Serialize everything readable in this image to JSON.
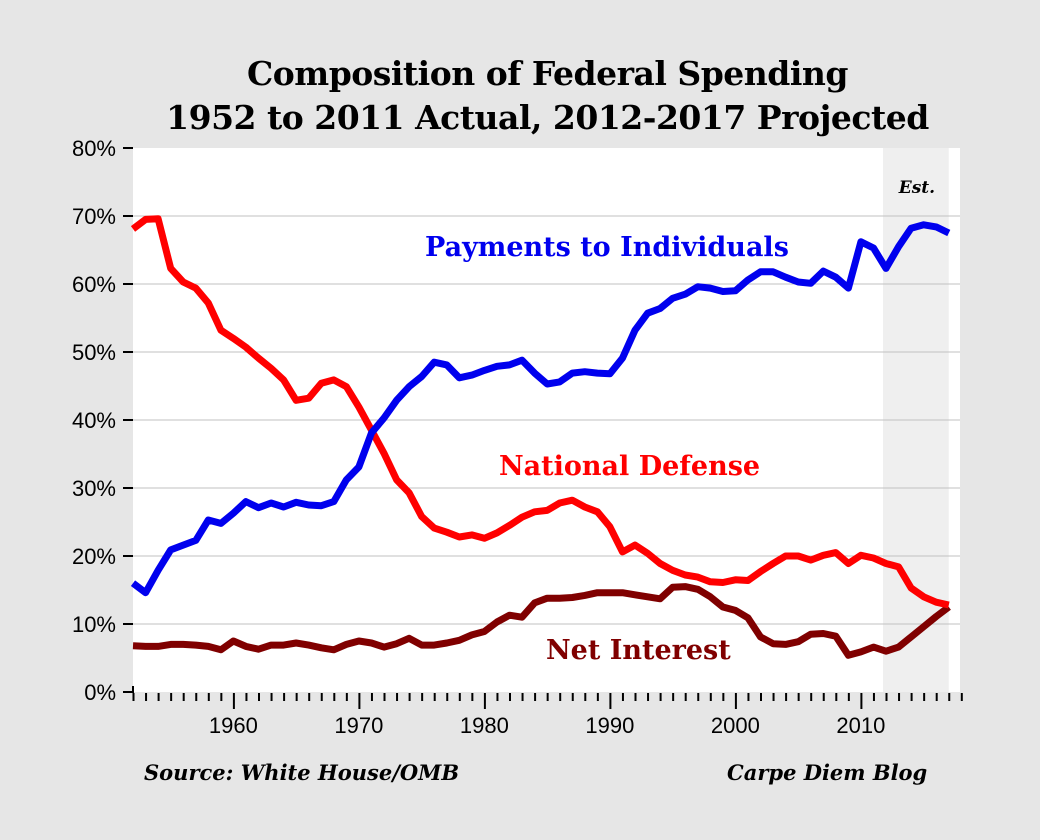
{
  "chart_data": {
    "type": "line",
    "title": "Composition of Federal Spending",
    "subtitle": "1952 to 2011 Actual, 2012-2017 Projected",
    "xlabel": "",
    "ylabel": "",
    "xlim": [
      1952,
      2018
    ],
    "ylim": [
      0,
      80
    ],
    "grid": true,
    "x_ticks": [
      1960,
      1970,
      1980,
      1990,
      2000,
      2010
    ],
    "x_tick_labels": [
      "1960",
      "1970",
      "1980",
      "1990",
      "2000",
      "2010"
    ],
    "y_ticks": [
      0,
      10,
      20,
      30,
      40,
      50,
      60,
      70,
      80
    ],
    "y_tick_labels": [
      "0%",
      "10%",
      "20%",
      "30%",
      "40%",
      "50%",
      "60%",
      "70%",
      "80%"
    ],
    "projection_region": {
      "start": 2012,
      "end": 2017,
      "label": "Est."
    },
    "x": [
      1952,
      1953,
      1954,
      1955,
      1956,
      1957,
      1958,
      1959,
      1960,
      1961,
      1962,
      1963,
      1964,
      1965,
      1966,
      1967,
      1968,
      1969,
      1970,
      1971,
      1972,
      1973,
      1974,
      1975,
      1976,
      1977,
      1978,
      1979,
      1980,
      1981,
      1982,
      1983,
      1984,
      1985,
      1986,
      1987,
      1988,
      1989,
      1990,
      1991,
      1992,
      1993,
      1994,
      1995,
      1996,
      1997,
      1998,
      1999,
      2000,
      2001,
      2002,
      2003,
      2004,
      2005,
      2006,
      2007,
      2008,
      2009,
      2010,
      2011,
      2012,
      2013,
      2014,
      2015,
      2016,
      2017
    ],
    "series": [
      {
        "name": "Payments to Individuals",
        "color": "#0000ee",
        "values": [
          16.0,
          14.6,
          17.9,
          20.9,
          21.6,
          22.3,
          25.3,
          24.8,
          26.3,
          28.0,
          27.1,
          27.8,
          27.2,
          27.9,
          27.5,
          27.4,
          28.0,
          31.2,
          33.1,
          38.1,
          40.3,
          42.9,
          44.9,
          46.4,
          48.5,
          48.1,
          46.2,
          46.6,
          47.3,
          47.9,
          48.1,
          48.8,
          46.9,
          45.3,
          45.6,
          46.9,
          47.1,
          46.9,
          46.8,
          49.1,
          53.2,
          55.7,
          56.4,
          57.9,
          58.5,
          59.6,
          59.4,
          58.9,
          59.0,
          60.6,
          61.8,
          61.8,
          61.0,
          60.3,
          60.1,
          61.9,
          61.0,
          59.4,
          66.2,
          65.3,
          62.3,
          65.5,
          68.2,
          68.7,
          68.4,
          67.5
        ]
      },
      {
        "name": "National Defense",
        "color": "#ff0000",
        "values": [
          68.1,
          69.5,
          69.6,
          62.3,
          60.3,
          59.4,
          57.2,
          53.2,
          52.0,
          50.7,
          49.1,
          47.6,
          45.9,
          42.9,
          43.2,
          45.4,
          45.9,
          44.9,
          41.9,
          38.5,
          35.1,
          31.2,
          29.3,
          25.8,
          24.1,
          23.5,
          22.8,
          23.1,
          22.6,
          23.4,
          24.5,
          25.7,
          26.5,
          26.7,
          27.8,
          28.2,
          27.2,
          26.5,
          24.3,
          20.6,
          21.6,
          20.4,
          18.9,
          17.9,
          17.2,
          16.9,
          16.2,
          16.1,
          16.5,
          16.4,
          17.7,
          18.9,
          20.0,
          20.0,
          19.4,
          20.1,
          20.5,
          18.9,
          20.1,
          19.7,
          18.9,
          18.4,
          15.3,
          14.0,
          13.2,
          12.8
        ]
      },
      {
        "name": "Net Interest",
        "color": "#800000",
        "values": [
          6.8,
          6.7,
          6.7,
          7.0,
          7.0,
          6.9,
          6.7,
          6.2,
          7.5,
          6.7,
          6.3,
          6.9,
          6.9,
          7.2,
          6.9,
          6.5,
          6.2,
          7.0,
          7.5,
          7.2,
          6.6,
          7.1,
          7.9,
          6.9,
          6.9,
          7.2,
          7.6,
          8.4,
          8.9,
          10.3,
          11.3,
          11.0,
          13.1,
          13.8,
          13.8,
          13.9,
          14.2,
          14.6,
          14.6,
          14.6,
          14.3,
          14.0,
          13.7,
          15.4,
          15.5,
          15.1,
          14.0,
          12.5,
          12.0,
          10.9,
          8.1,
          7.1,
          7.0,
          7.4,
          8.5,
          8.6,
          8.2,
          5.4,
          5.9,
          6.6,
          6.0,
          6.6,
          8.1,
          9.6,
          11.1,
          12.5
        ]
      }
    ],
    "annotations": [
      {
        "text": "Payments to Individuals",
        "series": 0
      },
      {
        "text": "National Defense",
        "series": 1
      },
      {
        "text": "Net Interest",
        "series": 2
      }
    ],
    "source": "Source: White House/OMB",
    "credit": "Carpe Diem Blog"
  }
}
